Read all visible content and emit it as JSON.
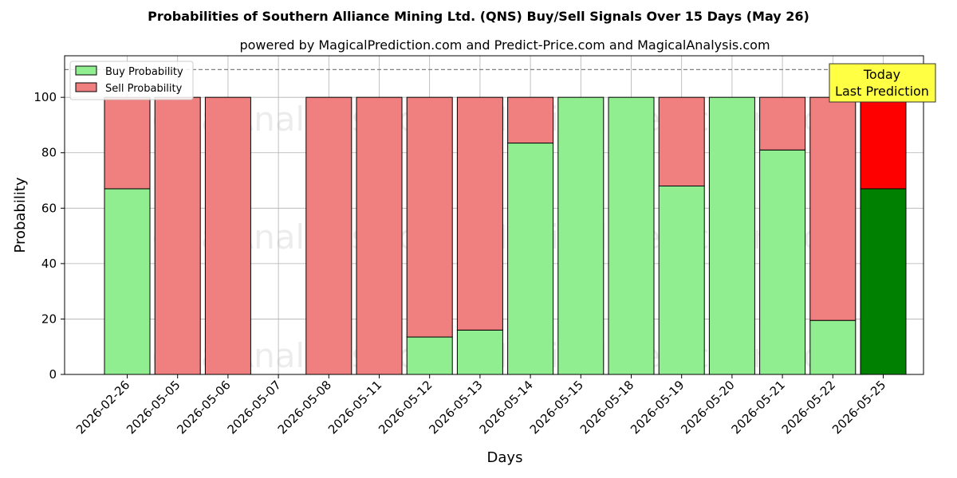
{
  "chart_data": {
    "type": "bar",
    "stacked": true,
    "title": "Probabilities of Southern Alliance Mining Ltd. (QNS) Buy/Sell Signals Over 15 Days (May 26)",
    "subtitle": "powered by MagicalPrediction.com and Predict-Price.com and MagicalAnalysis.com",
    "xlabel": "Days",
    "ylabel": "Probability",
    "ylim": [
      0,
      115
    ],
    "yticks": [
      0,
      20,
      40,
      60,
      80,
      100
    ],
    "grid": true,
    "reference_line": 110,
    "legend_position": "top-left",
    "categories": [
      "2026-02-26",
      "2026-05-05",
      "2026-05-06",
      "2026-05-07",
      "2026-05-08",
      "2026-05-11",
      "2026-05-12",
      "2026-05-13",
      "2026-05-14",
      "2026-05-15",
      "2026-05-18",
      "2026-05-19",
      "2026-05-20",
      "2026-05-21",
      "2026-05-22",
      "2026-05-25"
    ],
    "series": [
      {
        "name": "Buy Probability",
        "color": "#90ee90",
        "highlight_color": "#008000",
        "values": [
          67,
          0,
          0,
          null,
          0,
          0,
          13.5,
          16,
          83.5,
          100,
          100,
          68,
          100,
          81,
          19.5,
          67
        ]
      },
      {
        "name": "Sell Probability",
        "color": "#f08080",
        "highlight_color": "#ff0000",
        "values": [
          33,
          100,
          100,
          null,
          100,
          100,
          86.5,
          84,
          16.5,
          0,
          0,
          32,
          0,
          19,
          80.5,
          33
        ]
      }
    ],
    "highlight_index": 15,
    "annotation": {
      "lines": [
        "Today",
        "Last Prediction"
      ],
      "color": "#ffff44"
    },
    "watermarks": [
      "MagicalAnalysis.com",
      "MagicalPrediction.com"
    ]
  }
}
